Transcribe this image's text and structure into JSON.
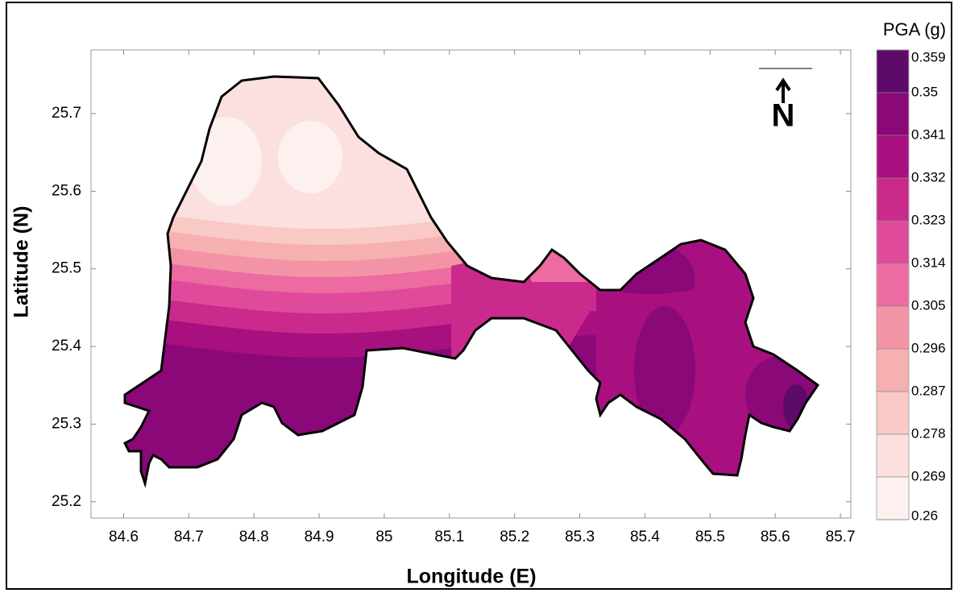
{
  "chart_data": {
    "type": "contour",
    "x_label": "Longitude (E)",
    "y_label": "Latitude (N)",
    "xlim": [
      84.55,
      85.716
    ],
    "xticks": [
      84.6,
      84.7,
      84.8,
      84.9,
      85,
      85.1,
      85.2,
      85.3,
      85.4,
      85.5,
      85.6,
      85.7
    ],
    "ylim": [
      25.179,
      25.782
    ],
    "yticks": [
      25.2,
      25.3,
      25.4,
      25.5,
      25.6,
      25.7
    ],
    "colorbar_title": "PGA (g)",
    "levels": [
      0.26,
      0.269,
      0.278,
      0.287,
      0.296,
      0.305,
      0.314,
      0.323,
      0.332,
      0.341,
      0.35,
      0.359
    ],
    "colors": [
      "#fdf1ef",
      "#fbe0df",
      "#f9c9c6",
      "#f6b0b0",
      "#f394a6",
      "#ec6ba0",
      "#e04a9a",
      "#c92a8c",
      "#a8107f",
      "#8a0878",
      "#5e0a6a"
    ],
    "north_label": "N"
  }
}
